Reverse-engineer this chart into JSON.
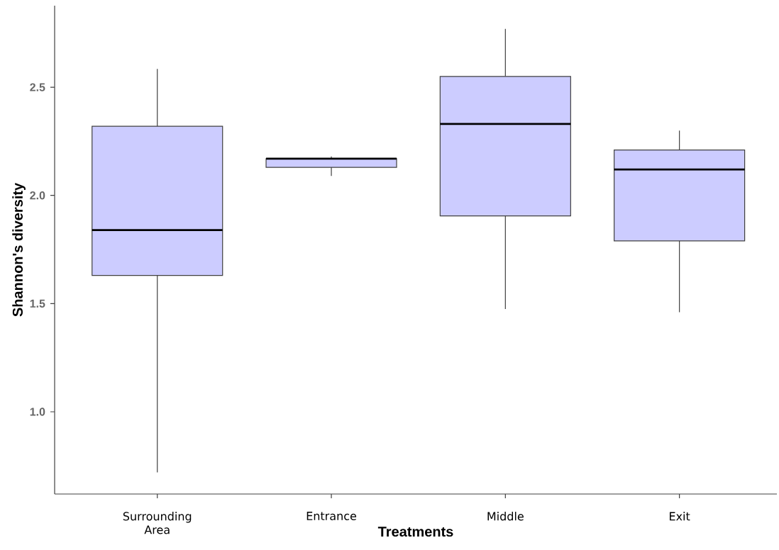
{
  "chart_data": {
    "type": "box",
    "xlabel": "Treatments",
    "ylabel": "Shannon's diversity",
    "categories": [
      "Surrounding Area",
      "Entrance",
      "Middle",
      "Exit"
    ],
    "color": "#ccccff",
    "boxes": [
      {
        "low": 0.72,
        "q1": 1.63,
        "median": 1.84,
        "q3": 2.32,
        "high": 2.585
      },
      {
        "low": 2.09,
        "q1": 2.13,
        "median": 2.17,
        "q3": 2.17,
        "high": 2.18
      },
      {
        "low": 1.475,
        "q1": 1.905,
        "median": 2.33,
        "q3": 2.55,
        "high": 2.77
      },
      {
        "low": 1.46,
        "q1": 1.79,
        "median": 2.12,
        "q3": 2.21,
        "high": 2.3
      }
    ],
    "ylim": [
      0.62,
      2.877
    ],
    "yticks": [
      {
        "value": 1,
        "label": "1.0"
      },
      1.5,
      {
        "value": 2,
        "label": "2.0"
      },
      2.5
    ],
    "grid": false
  }
}
